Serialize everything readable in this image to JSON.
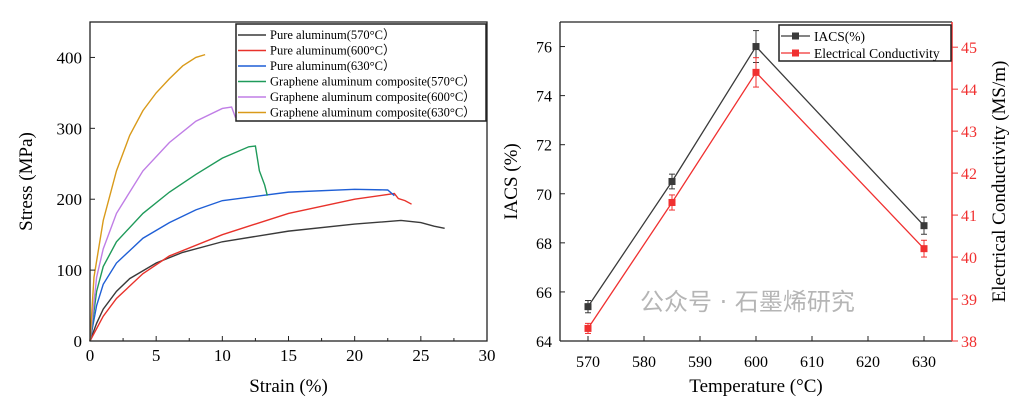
{
  "chart_data": [
    {
      "type": "line",
      "xlabel": "Strain (%)",
      "ylabel": "Stress (MPa)",
      "xlim": [
        0,
        30
      ],
      "ylim": [
        0,
        450
      ],
      "xticks": [
        0,
        5,
        10,
        15,
        20,
        25,
        30
      ],
      "yticks": [
        0,
        100,
        200,
        300,
        400
      ],
      "legend_position": "top-right",
      "series": [
        {
          "name": "Pure aluminum(570°C）",
          "color": "#3a3a3a",
          "points": [
            [
              0,
              0
            ],
            [
              0.5,
              25
            ],
            [
              1,
              45
            ],
            [
              2,
              70
            ],
            [
              3,
              88
            ],
            [
              5,
              110
            ],
            [
              7,
              125
            ],
            [
              10,
              140
            ],
            [
              15,
              155
            ],
            [
              20,
              165
            ],
            [
              23.5,
              170
            ],
            [
              25,
              167
            ],
            [
              26,
              162
            ],
            [
              26.8,
              159
            ]
          ]
        },
        {
          "name": "Pure aluminum(600°C）",
          "color": "#e8322b",
          "points": [
            [
              0,
              0
            ],
            [
              1,
              35
            ],
            [
              2,
              60
            ],
            [
              4,
              95
            ],
            [
              6,
              120
            ],
            [
              10,
              150
            ],
            [
              15,
              180
            ],
            [
              20,
              200
            ],
            [
              23,
              208
            ],
            [
              23.3,
              201
            ],
            [
              23.8,
              198
            ],
            [
              24.3,
              193
            ]
          ]
        },
        {
          "name": "Pure aluminum(630°C）",
          "color": "#1f5fd6",
          "points": [
            [
              0,
              0
            ],
            [
              0.5,
              50
            ],
            [
              1,
              80
            ],
            [
              2,
              110
            ],
            [
              4,
              145
            ],
            [
              6,
              167
            ],
            [
              8,
              185
            ],
            [
              10,
              198
            ],
            [
              15,
              210
            ],
            [
              20,
              214
            ],
            [
              22.5,
              213
            ],
            [
              23,
              205
            ]
          ]
        },
        {
          "name": "Graphene aluminum composite(570°C）",
          "color": "#1f9a5a",
          "points": [
            [
              0,
              0
            ],
            [
              0.5,
              70
            ],
            [
              1,
              105
            ],
            [
              2,
              140
            ],
            [
              4,
              180
            ],
            [
              6,
              210
            ],
            [
              8,
              235
            ],
            [
              10,
              258
            ],
            [
              12,
              274
            ],
            [
              12.5,
              275
            ],
            [
              12.8,
              240
            ],
            [
              13.2,
              220
            ],
            [
              13.4,
              205
            ]
          ]
        },
        {
          "name": "Graphene aluminum composite(600°C）",
          "color": "#c07ee6",
          "points": [
            [
              0,
              0
            ],
            [
              0.5,
              90
            ],
            [
              1,
              130
            ],
            [
              2,
              180
            ],
            [
              4,
              240
            ],
            [
              6,
              280
            ],
            [
              8,
              310
            ],
            [
              10,
              328
            ],
            [
              10.7,
              330
            ],
            [
              11,
              315
            ]
          ]
        },
        {
          "name": "Graphene aluminum composite(630°C）",
          "color": "#d99a1a",
          "points": [
            [
              0,
              0
            ],
            [
              0.3,
              90
            ],
            [
              1,
              170
            ],
            [
              2,
              240
            ],
            [
              3,
              290
            ],
            [
              4,
              325
            ],
            [
              5,
              350
            ],
            [
              6,
              370
            ],
            [
              7,
              388
            ],
            [
              8,
              400
            ],
            [
              8.7,
              404
            ]
          ]
        }
      ]
    },
    {
      "type": "line",
      "xlabel": "Temperature (°C)",
      "ylabel": "IACS (%)",
      "ylabel_right": "Electrical Conductivity (MS/m)",
      "xlim": [
        565,
        635
      ],
      "ylim": [
        64,
        77
      ],
      "ylim_right": [
        38,
        45.6
      ],
      "xticks": [
        570,
        580,
        590,
        600,
        610,
        620,
        630
      ],
      "yticks": [
        64,
        66,
        68,
        70,
        72,
        74,
        76
      ],
      "yticks_right": [
        38,
        39,
        40,
        41,
        42,
        43,
        44,
        45
      ],
      "legend_position": "top-right",
      "x": [
        570,
        585,
        600,
        630
      ],
      "series": [
        {
          "name": "IACS(%)",
          "axis": "left",
          "color": "#3a3a3a",
          "values": [
            65.4,
            70.5,
            76.0,
            68.7
          ],
          "errors": [
            0.25,
            0.3,
            0.65,
            0.35
          ]
        },
        {
          "name": "Electrical Conductivity",
          "axis": "right",
          "color": "#f03030",
          "values": [
            38.3,
            41.3,
            44.4,
            40.2
          ],
          "errors": [
            0.12,
            0.18,
            0.35,
            0.2
          ]
        }
      ]
    }
  ],
  "watermark": "公众号 · 石墨烯研究"
}
